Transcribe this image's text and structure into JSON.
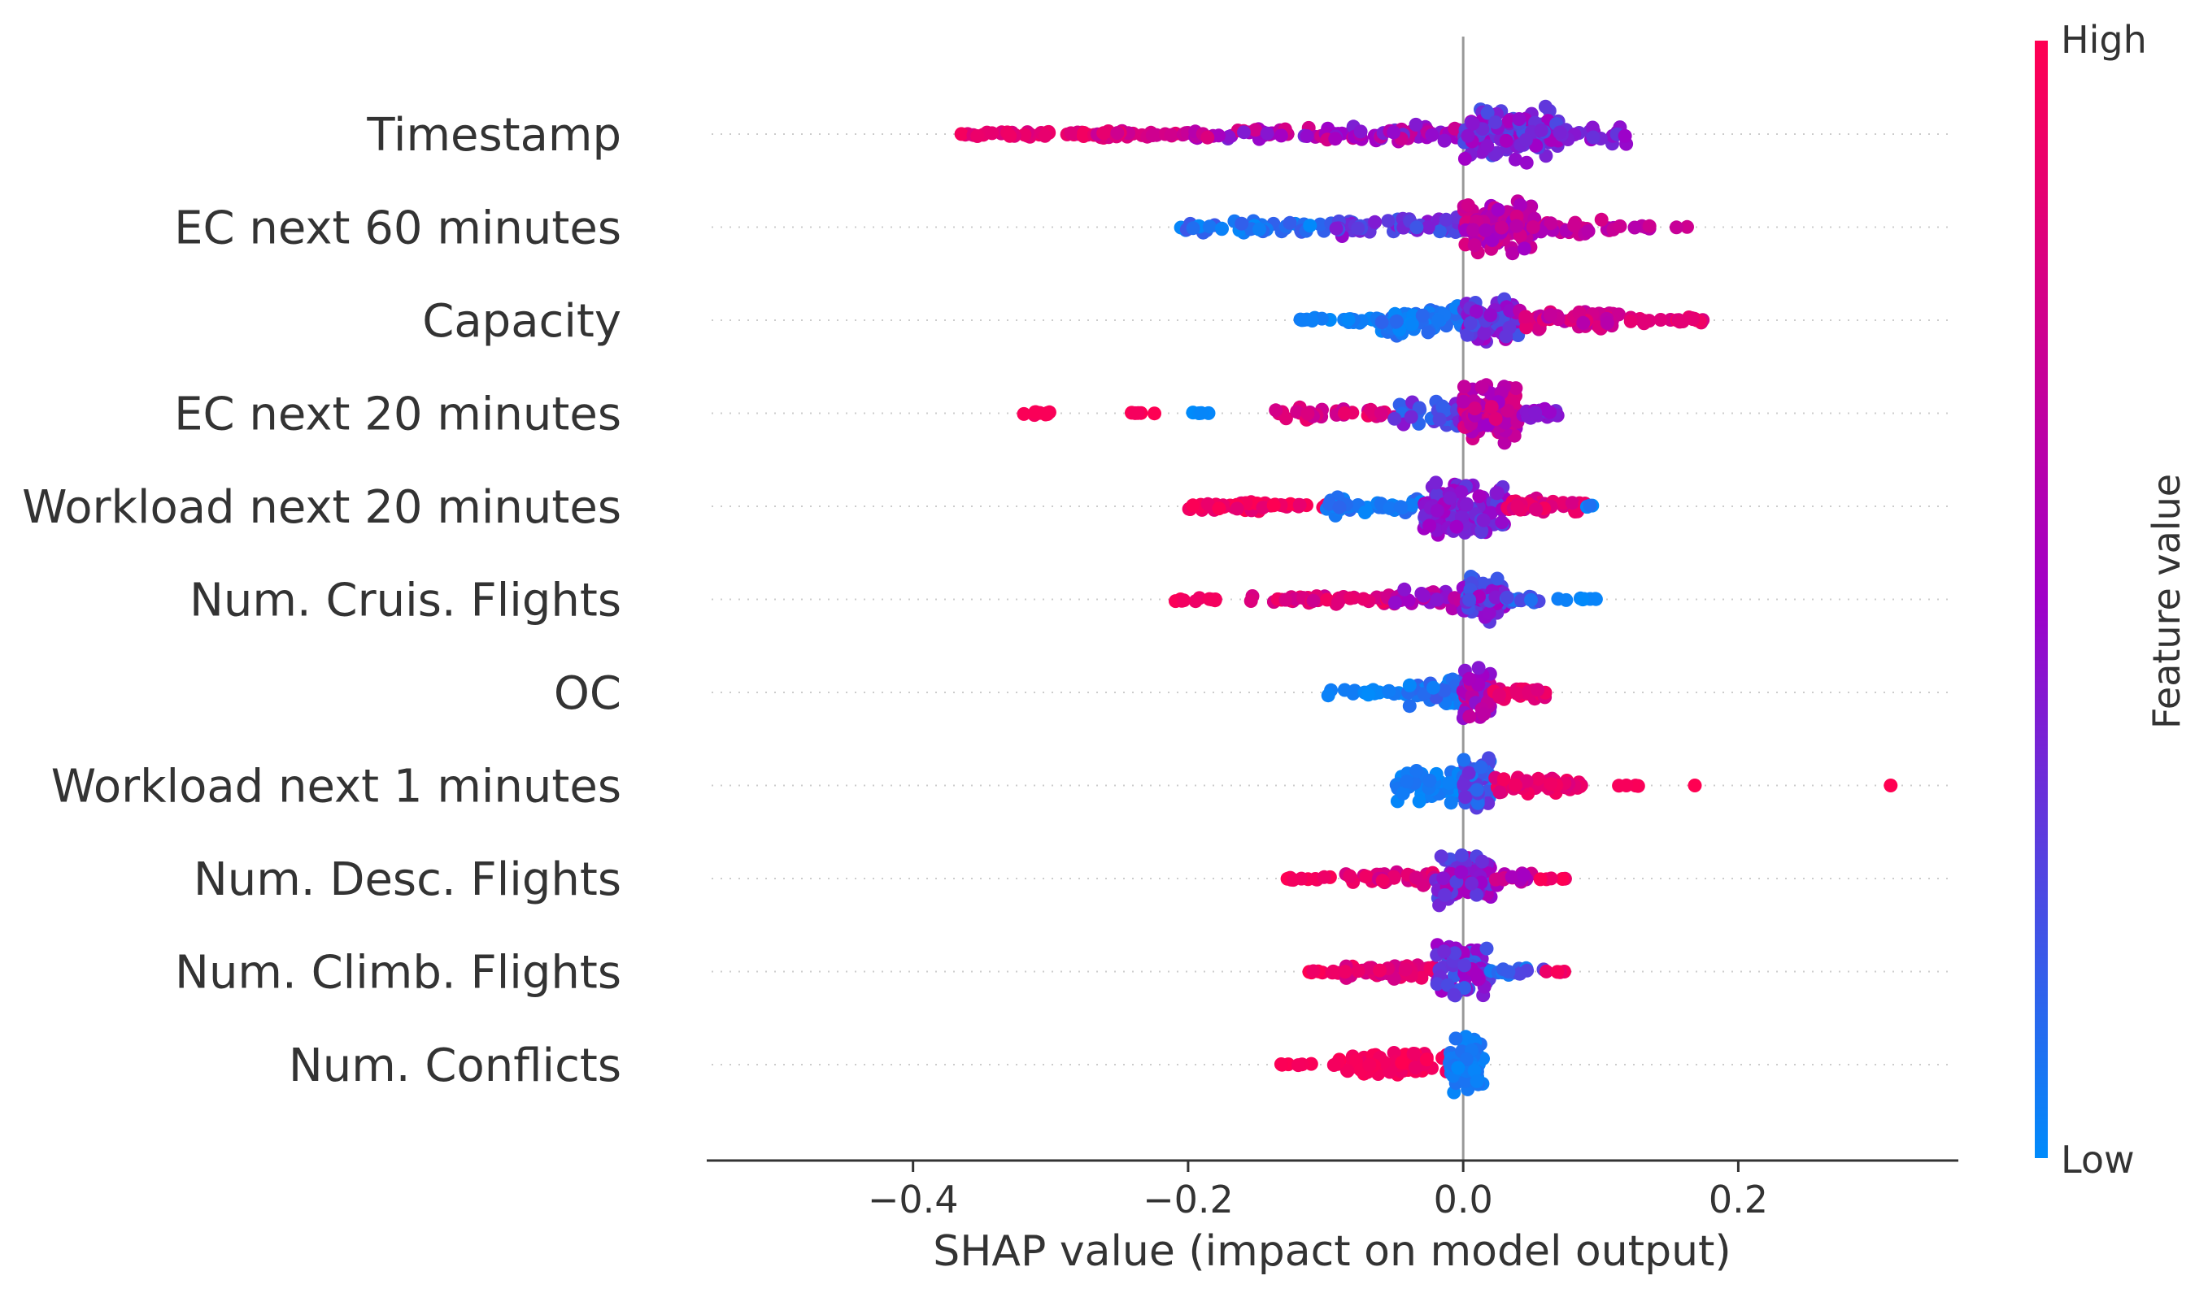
{
  "chart_data": {
    "type": "scatter",
    "subtype": "shap-beeswarm",
    "title": "",
    "xlabel": "SHAP value (impact on model output)",
    "ylabel": "",
    "xlim": [
      -0.55,
      0.36
    ],
    "xticks": [
      -0.4,
      -0.2,
      0.0,
      0.2
    ],
    "xtick_labels": [
      "−0.4",
      "−0.2",
      "0.0",
      "0.2"
    ],
    "colorbar": {
      "label": "Feature value",
      "high_label": "High",
      "low_label": "Low",
      "high_color": "#ff0052",
      "mid_color": "#a000c8",
      "low_color": "#008bfb"
    },
    "zero_line": 0.0,
    "features": [
      {
        "name": "Timestamp",
        "range": [
          -0.37,
          0.12
        ],
        "distribution": [
          {
            "min": -0.37,
            "max": -0.27,
            "n": 40,
            "hi": 0.95,
            "lo": 0.8,
            "spread": 0.08
          },
          {
            "min": -0.27,
            "max": -0.2,
            "n": 30,
            "hi": 0.9,
            "lo": 0.7,
            "spread": 0.12
          },
          {
            "min": -0.2,
            "max": -0.08,
            "n": 50,
            "hi": 0.85,
            "lo": 0.35,
            "spread": 0.2
          },
          {
            "min": -0.08,
            "max": 0.0,
            "n": 40,
            "hi": 0.75,
            "lo": 0.35,
            "spread": 0.3
          },
          {
            "min": 0.0,
            "max": 0.07,
            "n": 130,
            "hi": 0.55,
            "lo": 0.2,
            "spread": 0.85
          },
          {
            "min": 0.07,
            "max": 0.12,
            "n": 20,
            "hi": 0.5,
            "lo": 0.3,
            "spread": 0.3
          }
        ]
      },
      {
        "name": "EC next 60 minutes",
        "range": [
          -0.21,
          0.165
        ],
        "distribution": [
          {
            "min": -0.21,
            "max": -0.1,
            "n": 40,
            "hi": 0.2,
            "lo": 0.0,
            "spread": 0.18
          },
          {
            "min": -0.1,
            "max": 0.0,
            "n": 50,
            "hi": 0.5,
            "lo": 0.15,
            "spread": 0.3
          },
          {
            "min": 0.0,
            "max": 0.05,
            "n": 110,
            "hi": 0.85,
            "lo": 0.5,
            "spread": 0.8
          },
          {
            "min": 0.05,
            "max": 0.11,
            "n": 30,
            "hi": 0.8,
            "lo": 0.55,
            "spread": 0.25
          },
          {
            "min": 0.11,
            "max": 0.165,
            "n": 8,
            "hi": 0.75,
            "lo": 0.6,
            "spread": 0.05
          }
        ]
      },
      {
        "name": "Capacity",
        "range": [
          -0.13,
          0.175
        ],
        "distribution": [
          {
            "min": -0.13,
            "max": -0.06,
            "n": 25,
            "hi": 0.08,
            "lo": 0.0,
            "spread": 0.1
          },
          {
            "min": -0.06,
            "max": 0.0,
            "n": 70,
            "hi": 0.15,
            "lo": 0.0,
            "spread": 0.5
          },
          {
            "min": 0.0,
            "max": 0.04,
            "n": 80,
            "hi": 0.6,
            "lo": 0.2,
            "spread": 0.7
          },
          {
            "min": 0.04,
            "max": 0.12,
            "n": 50,
            "hi": 0.9,
            "lo": 0.6,
            "spread": 0.3
          },
          {
            "min": 0.12,
            "max": 0.175,
            "n": 20,
            "hi": 0.95,
            "lo": 0.8,
            "spread": 0.12
          }
        ]
      },
      {
        "name": "EC next 20 minutes",
        "range": [
          -0.32,
          0.07
        ],
        "distribution": [
          {
            "min": -0.32,
            "max": -0.3,
            "n": 10,
            "hi": 1.0,
            "lo": 0.95,
            "spread": 0.08
          },
          {
            "min": -0.25,
            "max": -0.22,
            "n": 5,
            "hi": 1.0,
            "lo": 0.95,
            "spread": 0.02
          },
          {
            "min": -0.2,
            "max": -0.18,
            "n": 4,
            "hi": 0.05,
            "lo": 0.0,
            "spread": 0.02
          },
          {
            "min": -0.14,
            "max": -0.05,
            "n": 35,
            "hi": 0.95,
            "lo": 0.7,
            "spread": 0.2
          },
          {
            "min": -0.05,
            "max": 0.0,
            "n": 40,
            "hi": 0.45,
            "lo": 0.1,
            "spread": 0.4
          },
          {
            "min": 0.0,
            "max": 0.04,
            "n": 100,
            "hi": 0.85,
            "lo": 0.5,
            "spread": 0.85
          },
          {
            "min": 0.04,
            "max": 0.07,
            "n": 20,
            "hi": 0.5,
            "lo": 0.35,
            "spread": 0.2
          }
        ]
      },
      {
        "name": "Workload next 20 minutes",
        "range": [
          -0.2,
          0.105
        ],
        "distribution": [
          {
            "min": -0.2,
            "max": -0.1,
            "n": 45,
            "hi": 1.0,
            "lo": 0.85,
            "spread": 0.15
          },
          {
            "min": -0.1,
            "max": -0.03,
            "n": 40,
            "hi": 0.15,
            "lo": 0.0,
            "spread": 0.3
          },
          {
            "min": -0.03,
            "max": 0.03,
            "n": 120,
            "hi": 0.55,
            "lo": 0.25,
            "spread": 0.9
          },
          {
            "min": 0.03,
            "max": 0.09,
            "n": 40,
            "hi": 0.95,
            "lo": 0.75,
            "spread": 0.25
          },
          {
            "min": 0.09,
            "max": 0.105,
            "n": 4,
            "hi": 0.1,
            "lo": 0.0,
            "spread": 0.05
          }
        ]
      },
      {
        "name": "Num. Cruis. Flights",
        "range": [
          -0.21,
          0.1
        ],
        "distribution": [
          {
            "min": -0.21,
            "max": -0.18,
            "n": 10,
            "hi": 1.0,
            "lo": 0.9,
            "spread": 0.08
          },
          {
            "min": -0.16,
            "max": -0.05,
            "n": 40,
            "hi": 0.95,
            "lo": 0.7,
            "spread": 0.15
          },
          {
            "min": -0.05,
            "max": 0.0,
            "n": 30,
            "hi": 0.75,
            "lo": 0.4,
            "spread": 0.3
          },
          {
            "min": 0.0,
            "max": 0.03,
            "n": 60,
            "hi": 0.55,
            "lo": 0.15,
            "spread": 0.75
          },
          {
            "min": 0.03,
            "max": 0.06,
            "n": 12,
            "hi": 0.25,
            "lo": 0.05,
            "spread": 0.1
          },
          {
            "min": 0.06,
            "max": 0.1,
            "n": 8,
            "hi": 0.05,
            "lo": 0.0,
            "spread": 0.04
          }
        ]
      },
      {
        "name": "OC",
        "range": [
          -0.1,
          0.06
        ],
        "distribution": [
          {
            "min": -0.1,
            "max": -0.04,
            "n": 18,
            "hi": 0.08,
            "lo": 0.0,
            "spread": 0.1
          },
          {
            "min": -0.04,
            "max": 0.0,
            "n": 45,
            "hi": 0.2,
            "lo": 0.0,
            "spread": 0.45
          },
          {
            "min": 0.0,
            "max": 0.02,
            "n": 60,
            "hi": 0.75,
            "lo": 0.4,
            "spread": 0.85
          },
          {
            "min": 0.02,
            "max": 0.06,
            "n": 25,
            "hi": 0.95,
            "lo": 0.8,
            "spread": 0.2
          }
        ]
      },
      {
        "name": "Workload next 1 minutes",
        "range": [
          -0.05,
          0.315
        ],
        "distribution": [
          {
            "min": -0.05,
            "max": 0.0,
            "n": 40,
            "hi": 0.1,
            "lo": 0.0,
            "spread": 0.55
          },
          {
            "min": 0.0,
            "max": 0.02,
            "n": 60,
            "hi": 0.35,
            "lo": 0.05,
            "spread": 0.85
          },
          {
            "min": 0.02,
            "max": 0.09,
            "n": 50,
            "hi": 0.95,
            "lo": 0.8,
            "spread": 0.25
          },
          {
            "min": 0.11,
            "max": 0.13,
            "n": 4,
            "hi": 1.0,
            "lo": 0.95,
            "spread": 0.02
          },
          {
            "min": 0.16,
            "max": 0.17,
            "n": 1,
            "hi": 1.0,
            "lo": 1.0,
            "spread": 0.0
          },
          {
            "min": 0.31,
            "max": 0.315,
            "n": 1,
            "hi": 1.0,
            "lo": 1.0,
            "spread": 0.0
          }
        ]
      },
      {
        "name": "Num. Desc. Flights",
        "range": [
          -0.13,
          0.075
        ],
        "distribution": [
          {
            "min": -0.13,
            "max": -0.09,
            "n": 10,
            "hi": 1.0,
            "lo": 0.9,
            "spread": 0.05
          },
          {
            "min": -0.09,
            "max": -0.02,
            "n": 35,
            "hi": 0.95,
            "lo": 0.7,
            "spread": 0.2
          },
          {
            "min": -0.02,
            "max": 0.02,
            "n": 70,
            "hi": 0.6,
            "lo": 0.2,
            "spread": 0.85
          },
          {
            "min": 0.02,
            "max": 0.05,
            "n": 18,
            "hi": 0.85,
            "lo": 0.5,
            "spread": 0.2
          },
          {
            "min": 0.05,
            "max": 0.075,
            "n": 5,
            "hi": 1.0,
            "lo": 0.9,
            "spread": 0.03
          }
        ]
      },
      {
        "name": "Num. Climb. Flights",
        "range": [
          -0.12,
          0.075
        ],
        "distribution": [
          {
            "min": -0.12,
            "max": -0.09,
            "n": 8,
            "hi": 1.0,
            "lo": 0.9,
            "spread": 0.05
          },
          {
            "min": -0.09,
            "max": -0.02,
            "n": 45,
            "hi": 0.95,
            "lo": 0.75,
            "spread": 0.25
          },
          {
            "min": -0.02,
            "max": 0.02,
            "n": 70,
            "hi": 0.55,
            "lo": 0.15,
            "spread": 0.85
          },
          {
            "min": 0.02,
            "max": 0.06,
            "n": 15,
            "hi": 0.3,
            "lo": 0.05,
            "spread": 0.15
          },
          {
            "min": 0.06,
            "max": 0.075,
            "n": 4,
            "hi": 1.0,
            "lo": 0.9,
            "spread": 0.03
          }
        ]
      },
      {
        "name": "Num. Conflicts",
        "range": [
          -0.135,
          0.015
        ],
        "distribution": [
          {
            "min": -0.135,
            "max": -0.11,
            "n": 6,
            "hi": 1.0,
            "lo": 0.95,
            "spread": 0.04
          },
          {
            "min": -0.1,
            "max": -0.01,
            "n": 70,
            "hi": 1.0,
            "lo": 0.9,
            "spread": 0.35
          },
          {
            "min": -0.01,
            "max": 0.015,
            "n": 70,
            "hi": 0.1,
            "lo": 0.0,
            "spread": 0.85
          }
        ]
      }
    ]
  }
}
